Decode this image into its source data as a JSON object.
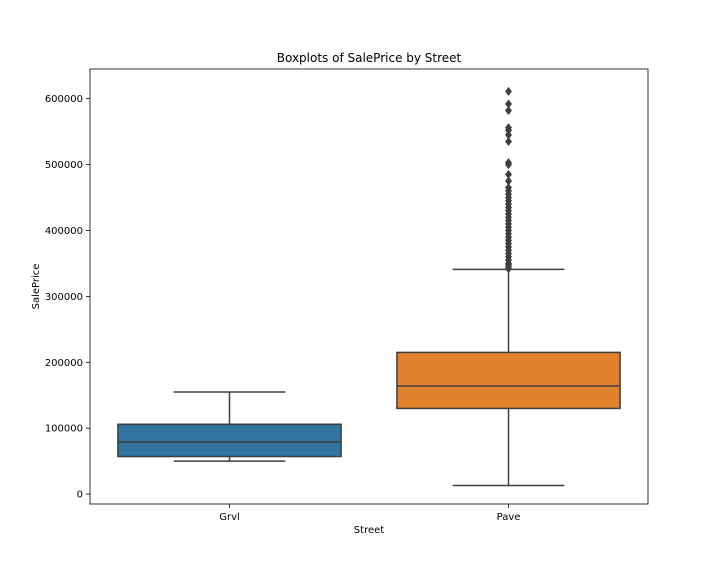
{
  "chart_data": {
    "type": "box",
    "title": "Boxplots of SalePrice by Street",
    "xlabel": "Street",
    "ylabel": "SalePrice",
    "ylim": [
      -15000,
      645000
    ],
    "yticks": [
      0,
      100000,
      200000,
      300000,
      400000,
      500000,
      600000
    ],
    "categories": [
      "Grvl",
      "Pave"
    ],
    "boxes": [
      {
        "category": "Grvl",
        "color": "#3274a1",
        "whisker_low": 50000,
        "q1": 57000,
        "median": 79000,
        "q3": 106000,
        "whisker_high": 155000,
        "outliers": []
      },
      {
        "category": "Pave",
        "color": "#e1812c",
        "whisker_low": 13000,
        "q1": 130000,
        "median": 164000,
        "q3": 215000,
        "whisker_high": 341000,
        "outliers": [
          342000,
          345000,
          348000,
          350000,
          355000,
          360000,
          365000,
          370000,
          375000,
          380000,
          385000,
          390000,
          395000,
          400000,
          405000,
          410000,
          415000,
          420000,
          425000,
          430000,
          435000,
          440000,
          445000,
          450000,
          455000,
          460000,
          465000,
          475000,
          485000,
          500000,
          503000,
          535000,
          545000,
          552000,
          556000,
          582000,
          592000,
          611000
        ]
      }
    ],
    "grid": false,
    "legend": "none"
  }
}
